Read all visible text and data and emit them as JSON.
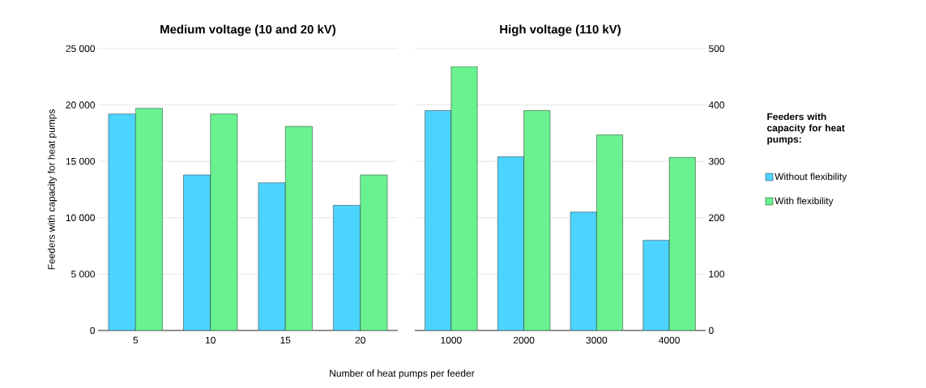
{
  "chart_data": [
    {
      "type": "bar",
      "title": "Medium voltage (10 and 20 kV)",
      "xlabel": "Number of heat pumps per feeder",
      "ylabel": "Feeders with capacity for heat pumps",
      "categories": [
        "5",
        "10",
        "15",
        "20"
      ],
      "series": [
        {
          "color": "#4dd4fe",
          "values": [
            19200,
            13800,
            13100,
            11100
          ]
        },
        {
          "color": "#69f28f",
          "values": [
            19700,
            19200,
            18100,
            13800
          ]
        }
      ],
      "ylim": [
        0,
        25000
      ],
      "yticks": [
        {
          "value": 0,
          "label": "0"
        },
        {
          "value": 5000,
          "label": "5 000"
        },
        {
          "value": 10000,
          "label": "10 000"
        },
        {
          "value": 15000,
          "label": "15 000"
        },
        {
          "value": 20000,
          "label": "20 000"
        },
        {
          "value": 25000,
          "label": "25 000"
        }
      ],
      "grid": "y",
      "legend": false
    },
    {
      "type": "bar",
      "title": "High voltage (110 kV)",
      "legend_title": "Feeders with capacity for heat pumps:",
      "categories": [
        "1000",
        "2000",
        "3000",
        "4000"
      ],
      "series": [
        {
          "name": "Without flexibility",
          "color": "#4dd4fe",
          "values": [
            390,
            308,
            210,
            160
          ],
          "axis": "y2"
        },
        {
          "name": "With flexibility",
          "color": "#69f28f",
          "values": [
            468,
            390,
            347,
            307
          ],
          "axis": "y2"
        }
      ],
      "y2lim": [
        0,
        500
      ],
      "y2ticks": [
        0,
        100,
        200,
        300,
        400,
        500
      ],
      "grid": "y",
      "legend": "right"
    }
  ]
}
